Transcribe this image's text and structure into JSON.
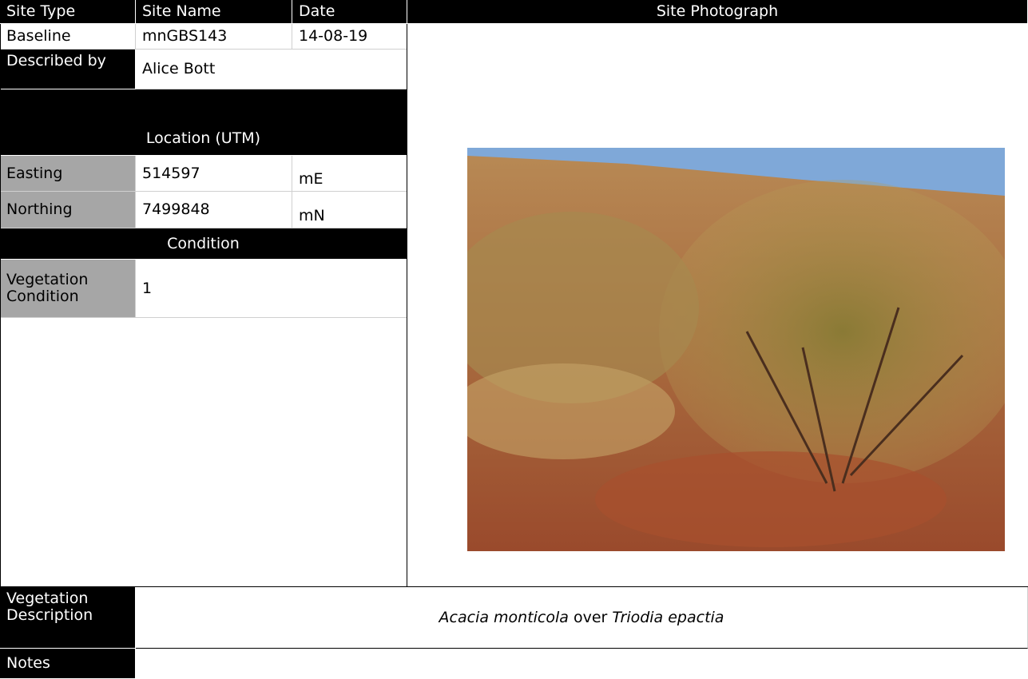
{
  "header": {
    "site_type": "Site Type",
    "site_name": "Site Name",
    "date": "Date",
    "site_photograph": "Site Photograph"
  },
  "site": {
    "site_type": "Baseline",
    "site_name": "mnGBS143",
    "date": "14-08-19",
    "described_by_label": "Described by",
    "described_by": "Alice Bott"
  },
  "location": {
    "title": "Location (UTM)",
    "easting_label": "Easting",
    "easting": "514597",
    "easting_unit": "mE",
    "northing_label": "Northing",
    "northing": "7499848",
    "northing_unit": "mN"
  },
  "condition": {
    "title": "Condition",
    "label": "Vegetation Condition",
    "value": "1"
  },
  "vegetation_description": {
    "label": "Vegetation Description",
    "parts": [
      "Acacia monticola",
      " over ",
      "Triodia epactia"
    ]
  },
  "notes": {
    "label": "Notes"
  }
}
